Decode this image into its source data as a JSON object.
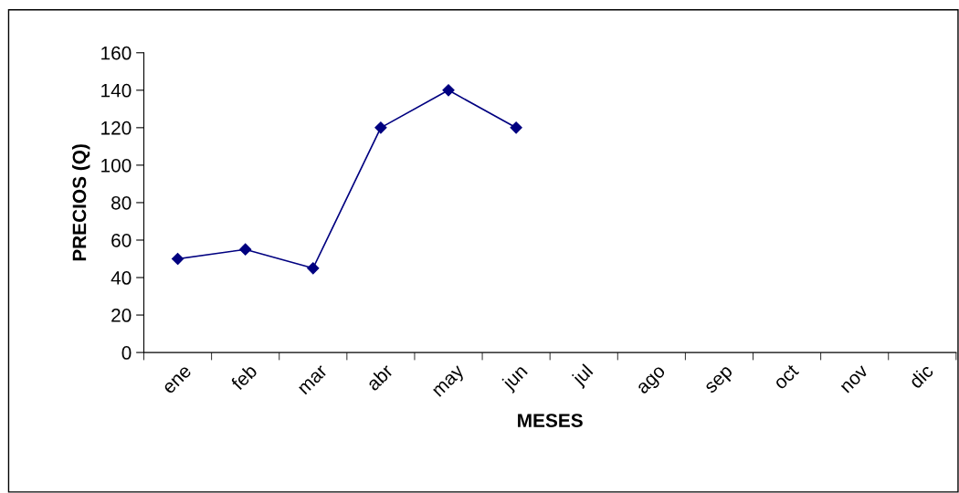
{
  "chart_data": {
    "type": "line",
    "xlabel": "MESES",
    "ylabel": "PRECIOS (Q)",
    "categories": [
      "ene",
      "feb",
      "mar",
      "abr",
      "may",
      "jun",
      "jul",
      "ago",
      "sep",
      "oct",
      "nov",
      "dic"
    ],
    "series": [
      {
        "color": "#000080",
        "values": [
          50,
          55,
          45,
          120,
          140,
          120,
          null,
          null,
          null,
          null,
          null,
          null
        ]
      }
    ],
    "ylim": [
      0,
      160
    ],
    "yticks": [
      0,
      20,
      40,
      60,
      80,
      100,
      120,
      140,
      160
    ],
    "marker": "diamond",
    "line_style": "solid",
    "grid": false,
    "legend": false
  }
}
